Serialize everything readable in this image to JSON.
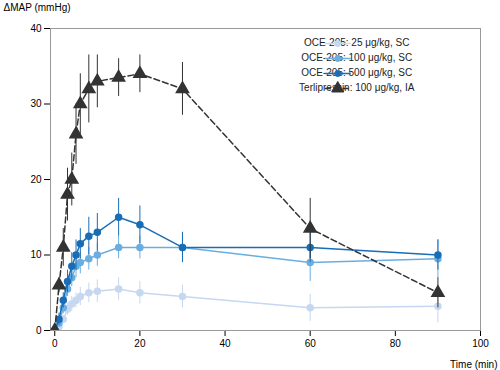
{
  "chart_data": {
    "type": "line",
    "xlabel": "Time (min)",
    "ylabel": "ΔMAP (mmHg)",
    "x": [
      0,
      1,
      2,
      3,
      4,
      5,
      6,
      8,
      10,
      15,
      20,
      30,
      60,
      90
    ],
    "series": [
      {
        "name": "OCE-205: 25 μg/kg, SC",
        "color": "#c5d8f0",
        "marker": "circle",
        "line_style": "solid",
        "values": [
          0,
          0.5,
          1.5,
          2.8,
          3.5,
          4.0,
          4.5,
          5.0,
          5.2,
          5.5,
          5.0,
          4.5,
          3.0,
          3.2
        ],
        "yerr": [
          0,
          0.3,
          0.5,
          0.8,
          1.0,
          1.0,
          1.2,
          1.3,
          1.5,
          1.5,
          1.5,
          1.5,
          1.8,
          2.2
        ]
      },
      {
        "name": "OCE-205: 100 μg/kg, SC",
        "color": "#6aaee0",
        "marker": "circle",
        "line_style": "solid",
        "values": [
          0,
          1.0,
          3.0,
          5.5,
          7.0,
          8.5,
          9.0,
          9.5,
          10.0,
          11.0,
          11.0,
          11.0,
          9.0,
          9.5
        ],
        "yerr": [
          0,
          0.5,
          0.8,
          1.0,
          1.2,
          1.5,
          1.5,
          1.5,
          1.5,
          1.5,
          1.5,
          2.0,
          2.5,
          2.5
        ]
      },
      {
        "name": "OCE-205: 500 μg/kg, SC",
        "color": "#1a6db5",
        "marker": "circle",
        "line_style": "solid",
        "values": [
          0,
          1.5,
          4.0,
          6.5,
          8.5,
          10.0,
          11.5,
          12.5,
          13.0,
          15.0,
          14.0,
          11.0,
          11.0,
          10.0
        ],
        "yerr": [
          0,
          0.8,
          1.0,
          1.5,
          1.8,
          2.0,
          2.0,
          2.5,
          2.5,
          2.5,
          2.5,
          2.0,
          2.0,
          2.0
        ]
      },
      {
        "name": "Terlipressin: 100 μg/kg, IA",
        "color": "#333333",
        "marker": "triangle",
        "line_style": "dashed",
        "values": [
          0,
          6.0,
          11.0,
          18.0,
          20.0,
          26.0,
          30.0,
          32.0,
          33.0,
          33.5,
          34.0,
          32.0,
          13.5,
          5.0
        ],
        "yerr": [
          0,
          1.0,
          2.5,
          3.5,
          3.5,
          4.0,
          4.0,
          4.5,
          3.5,
          2.5,
          2.5,
          3.5,
          4.0,
          2.0
        ]
      }
    ],
    "xlim": [
      -1,
      100
    ],
    "ylim": [
      0,
      40
    ],
    "xticks": [
      0,
      20,
      40,
      60,
      80,
      100
    ],
    "yticks": [
      0,
      10,
      20,
      30,
      40
    ],
    "legend": "upper right",
    "grid": false
  }
}
